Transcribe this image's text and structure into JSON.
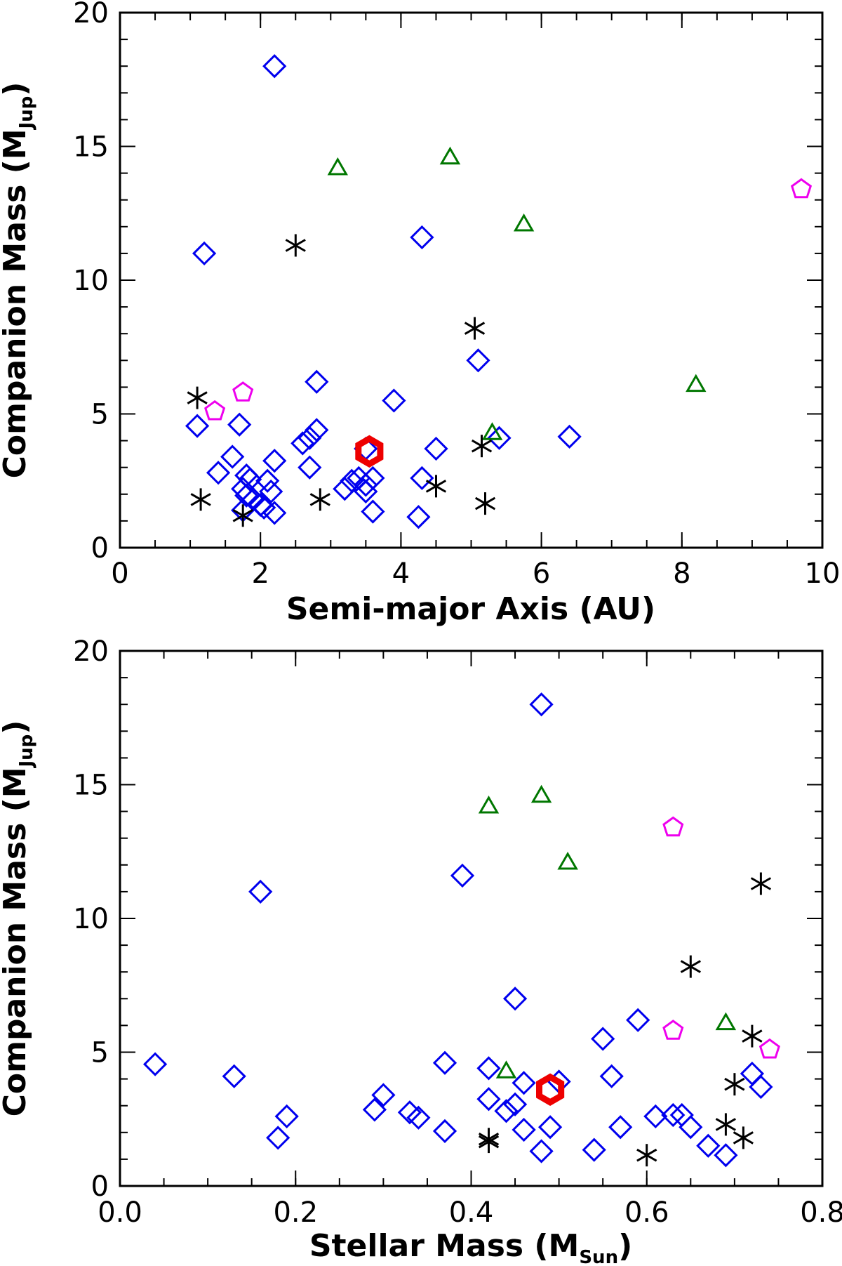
{
  "colors": {
    "diamond": "#0000ee",
    "triangle": "#007700",
    "pentagon": "#ee00ee",
    "star": "#000000",
    "hexagon": "#ee0000"
  },
  "chart_data": [
    {
      "type": "scatter",
      "title": "",
      "xlabel": "Semi-major Axis (AU)",
      "ylabel_main": "Companion Mass (M",
      "ylabel_sub": "Jup",
      "ylabel_close": ")",
      "xlim": [
        0,
        10
      ],
      "ylim": [
        0,
        20
      ],
      "xticks": [
        0,
        2,
        4,
        6,
        8,
        10
      ],
      "xtick_labels": [
        "0",
        "2",
        "4",
        "6",
        "8",
        "10"
      ],
      "yticks": [
        0,
        5,
        10,
        15,
        20
      ],
      "ytick_labels": [
        "0",
        "5",
        "10",
        "15",
        "20"
      ],
      "series": [
        {
          "name": "diamond",
          "marker": "diamond",
          "points": [
            [
              2.2,
              18.0
            ],
            [
              1.2,
              11.0
            ],
            [
              4.3,
              11.6
            ],
            [
              5.1,
              7.0
            ],
            [
              2.8,
              6.2
            ],
            [
              3.9,
              5.5
            ],
            [
              1.1,
              4.55
            ],
            [
              1.7,
              4.6
            ],
            [
              2.8,
              4.4
            ],
            [
              2.7,
              4.1
            ],
            [
              2.6,
              3.9
            ],
            [
              4.5,
              3.7
            ],
            [
              5.4,
              4.1
            ],
            [
              6.4,
              4.15
            ],
            [
              3.5,
              3.7
            ],
            [
              1.6,
              3.4
            ],
            [
              2.2,
              3.25
            ],
            [
              1.4,
              2.8
            ],
            [
              2.7,
              3.0
            ],
            [
              1.8,
              2.7
            ],
            [
              1.85,
              2.55
            ],
            [
              2.1,
              2.5
            ],
            [
              1.75,
              2.2
            ],
            [
              3.3,
              2.5
            ],
            [
              3.4,
              2.6
            ],
            [
              3.6,
              2.6
            ],
            [
              3.5,
              2.35
            ],
            [
              3.2,
              2.2
            ],
            [
              2.15,
              2.1
            ],
            [
              1.8,
              1.95
            ],
            [
              1.9,
              1.8
            ],
            [
              2.0,
              1.6
            ],
            [
              2.05,
              1.5
            ],
            [
              1.75,
              1.4
            ],
            [
              2.2,
              1.3
            ],
            [
              3.6,
              1.35
            ],
            [
              3.5,
              2.1
            ],
            [
              4.3,
              2.6
            ],
            [
              4.25,
              1.15
            ]
          ]
        },
        {
          "name": "triangle",
          "marker": "triangle",
          "points": [
            [
              3.1,
              14.2
            ],
            [
              4.7,
              14.6
            ],
            [
              5.75,
              12.1
            ],
            [
              8.2,
              6.1
            ],
            [
              5.3,
              4.3
            ]
          ]
        },
        {
          "name": "pentagon",
          "marker": "pentagon",
          "points": [
            [
              9.7,
              13.4
            ],
            [
              1.75,
              5.8
            ],
            [
              1.35,
              5.1
            ]
          ]
        },
        {
          "name": "star",
          "marker": "star",
          "points": [
            [
              2.5,
              11.3
            ],
            [
              5.05,
              8.2
            ],
            [
              1.1,
              5.6
            ],
            [
              5.15,
              3.8
            ],
            [
              4.5,
              2.3
            ],
            [
              1.15,
              1.8
            ],
            [
              2.85,
              1.8
            ],
            [
              5.2,
              1.65
            ],
            [
              1.75,
              1.2
            ]
          ]
        },
        {
          "name": "hexagon",
          "marker": "hexagon",
          "points": [
            [
              3.55,
              3.6
            ]
          ]
        }
      ]
    },
    {
      "type": "scatter",
      "title": "",
      "xlabel_main": "Stellar Mass (M",
      "xlabel_sub": "Sun",
      "xlabel_close": ")",
      "ylabel_main": "Companion Mass (M",
      "ylabel_sub": "Jup",
      "ylabel_close": ")",
      "xlim": [
        0.0,
        0.8
      ],
      "ylim": [
        0,
        20
      ],
      "xticks": [
        0.0,
        0.2,
        0.4,
        0.6,
        0.8
      ],
      "xtick_labels": [
        "0.0",
        "0.2",
        "0.4",
        "0.6",
        "0.8"
      ],
      "yticks": [
        0,
        5,
        10,
        15,
        20
      ],
      "ytick_labels": [
        "0",
        "5",
        "10",
        "15",
        "20"
      ],
      "series": [
        {
          "name": "diamond",
          "marker": "diamond",
          "points": [
            [
              0.48,
              18.0
            ],
            [
              0.16,
              11.0
            ],
            [
              0.39,
              11.6
            ],
            [
              0.45,
              7.0
            ],
            [
              0.59,
              6.2
            ],
            [
              0.55,
              5.5
            ],
            [
              0.04,
              4.55
            ],
            [
              0.13,
              4.1
            ],
            [
              0.37,
              4.6
            ],
            [
              0.42,
              4.4
            ],
            [
              0.46,
              3.85
            ],
            [
              0.5,
              3.9
            ],
            [
              0.56,
              4.1
            ],
            [
              0.72,
              4.2
            ],
            [
              0.73,
              3.7
            ],
            [
              0.3,
              3.4
            ],
            [
              0.42,
              3.25
            ],
            [
              0.45,
              3.05
            ],
            [
              0.44,
              2.8
            ],
            [
              0.29,
              2.85
            ],
            [
              0.33,
              2.75
            ],
            [
              0.34,
              2.55
            ],
            [
              0.19,
              2.6
            ],
            [
              0.61,
              2.6
            ],
            [
              0.63,
              2.65
            ],
            [
              0.64,
              2.65
            ],
            [
              0.46,
              2.1
            ],
            [
              0.49,
              2.2
            ],
            [
              0.57,
              2.2
            ],
            [
              0.65,
              2.2
            ],
            [
              0.37,
              2.05
            ],
            [
              0.18,
              1.8
            ],
            [
              0.48,
              1.3
            ],
            [
              0.54,
              1.35
            ],
            [
              0.67,
              1.5
            ],
            [
              0.69,
              1.15
            ]
          ]
        },
        {
          "name": "triangle",
          "marker": "triangle",
          "points": [
            [
              0.42,
              14.2
            ],
            [
              0.48,
              14.6
            ],
            [
              0.51,
              12.1
            ],
            [
              0.69,
              6.1
            ],
            [
              0.44,
              4.3
            ]
          ]
        },
        {
          "name": "pentagon",
          "marker": "pentagon",
          "points": [
            [
              0.63,
              13.4
            ],
            [
              0.63,
              5.8
            ],
            [
              0.74,
              5.1
            ]
          ]
        },
        {
          "name": "star",
          "marker": "star",
          "points": [
            [
              0.73,
              11.3
            ],
            [
              0.65,
              8.2
            ],
            [
              0.72,
              5.6
            ],
            [
              0.7,
              3.8
            ],
            [
              0.69,
              2.3
            ],
            [
              0.71,
              1.8
            ],
            [
              0.42,
              1.75
            ],
            [
              0.42,
              1.65
            ],
            [
              0.6,
              1.15
            ]
          ]
        },
        {
          "name": "hexagon",
          "marker": "hexagon",
          "points": [
            [
              0.49,
              3.6
            ]
          ]
        }
      ]
    }
  ]
}
